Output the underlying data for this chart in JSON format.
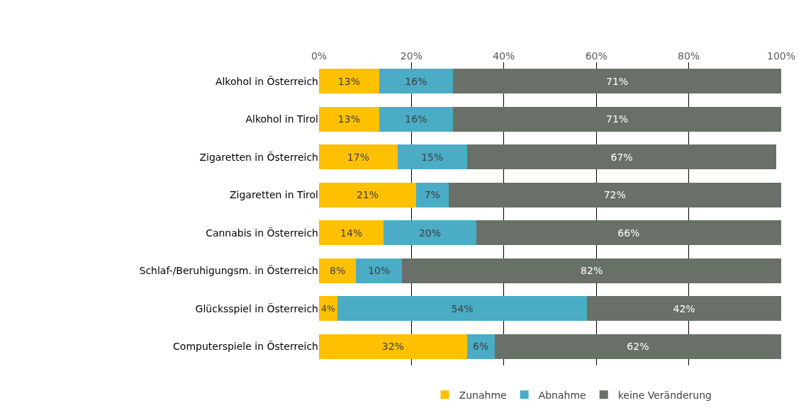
{
  "chart_data": {
    "type": "bar",
    "orientation": "horizontal",
    "stacked": true,
    "categories": [
      "Alkohol in Österreich",
      "Alkohol in Tirol",
      "Zigaretten in Österreich",
      "Zigaretten in Tirol",
      "Cannabis in Österreich",
      "Schlaf-/Beruhigungsm. in Österreich",
      "Glücksspiel in Österreich",
      "Computerspiele in Österreich"
    ],
    "series": [
      {
        "name": "Zunahme",
        "color": "#ffc000",
        "values": [
          13,
          13,
          17,
          21,
          14,
          8,
          4,
          32
        ],
        "value_labels": [
          "13%",
          "13%",
          "17%",
          "21%",
          "14%",
          "8%",
          "4%",
          "32%"
        ]
      },
      {
        "name": "Abnahme",
        "color": "#4bacc6",
        "values": [
          16,
          16,
          15,
          7,
          20,
          10,
          54,
          6
        ],
        "value_labels": [
          "16%",
          "16%",
          "15%",
          "7%",
          "20%",
          "10%",
          "54%",
          "6%"
        ]
      },
      {
        "name": "keine Veränderung",
        "color": "#687068",
        "values": [
          71,
          71,
          67,
          72,
          66,
          82,
          42,
          62
        ],
        "value_labels": [
          "71%",
          "71%",
          "67%",
          "72%",
          "66%",
          "82%",
          "42%",
          "62%"
        ]
      }
    ],
    "xlim": [
      0,
      100
    ],
    "xticks": [
      {
        "value": 0,
        "label": "0%"
      },
      {
        "value": 20,
        "label": "20%"
      },
      {
        "value": 40,
        "label": "40%"
      },
      {
        "value": 60,
        "label": "60%"
      },
      {
        "value": 80,
        "label": "80%"
      },
      {
        "value": 100,
        "label": "100%"
      }
    ],
    "grid": "x",
    "legend": "bottom"
  }
}
